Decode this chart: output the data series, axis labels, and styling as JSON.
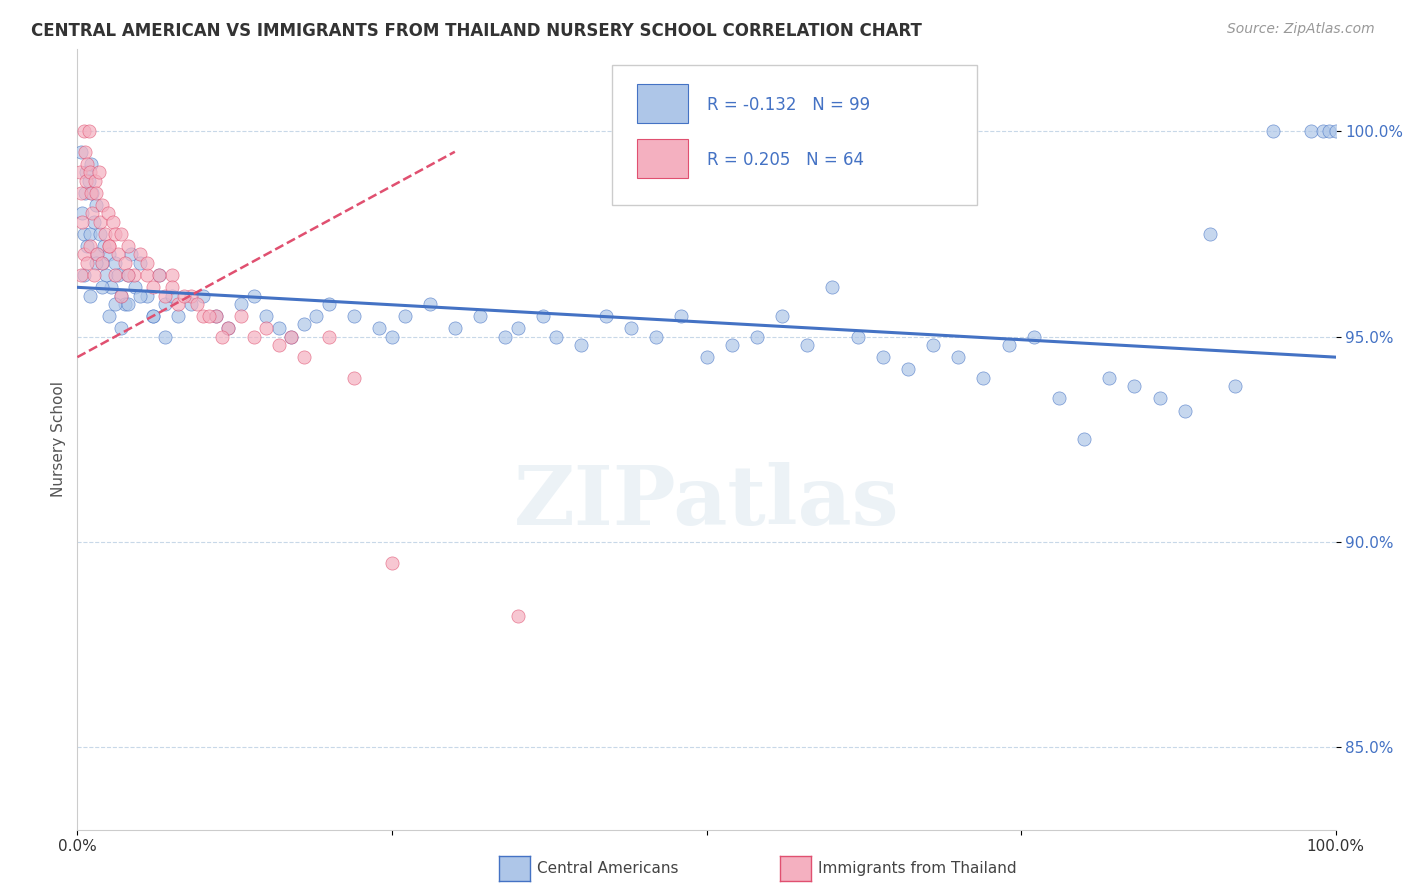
{
  "title": "CENTRAL AMERICAN VS IMMIGRANTS FROM THAILAND NURSERY SCHOOL CORRELATION CHART",
  "source_text": "Source: ZipAtlas.com",
  "ylabel": "Nursery School",
  "legend_label_1": "Central Americans",
  "legend_label_2": "Immigrants from Thailand",
  "r1": -0.132,
  "n1": 99,
  "r2": 0.205,
  "n2": 64,
  "color1": "#aec6e8",
  "color2": "#f4b0c0",
  "trendline1_color": "#4472c4",
  "trendline2_color": "#e05070",
  "watermark": "ZIPatlas",
  "xmin": 0.0,
  "xmax": 100.0,
  "ymin": 83.0,
  "ymax": 102.0,
  "yticks": [
    85.0,
    90.0,
    95.0,
    100.0
  ],
  "ytick_labels": [
    "85.0%",
    "90.0%",
    "95.0%",
    "100.0%"
  ],
  "blue_trendline_x0": 0.0,
  "blue_trendline_y0": 96.2,
  "blue_trendline_x1": 100.0,
  "blue_trendline_y1": 94.5,
  "pink_trendline_x0": 0.0,
  "pink_trendline_y0": 94.5,
  "pink_trendline_x1": 30.0,
  "pink_trendline_y1": 99.5,
  "scatter1_x": [
    0.3,
    0.4,
    0.5,
    0.6,
    0.7,
    0.8,
    0.9,
    1.0,
    1.1,
    1.2,
    1.3,
    1.5,
    1.6,
    1.8,
    2.0,
    2.1,
    2.3,
    2.5,
    2.7,
    3.0,
    3.2,
    3.5,
    3.8,
    4.0,
    4.3,
    4.6,
    5.0,
    5.5,
    6.0,
    6.5,
    7.0,
    7.5,
    8.0,
    9.0,
    10.0,
    11.0,
    12.0,
    13.0,
    14.0,
    15.0,
    16.0,
    17.0,
    18.0,
    19.0,
    20.0,
    22.0,
    24.0,
    25.0,
    26.0,
    28.0,
    30.0,
    32.0,
    34.0,
    35.0,
    37.0,
    38.0,
    40.0,
    42.0,
    44.0,
    46.0,
    48.0,
    50.0,
    52.0,
    54.0,
    56.0,
    58.0,
    60.0,
    62.0,
    64.0,
    66.0,
    68.0,
    70.0,
    72.0,
    74.0,
    76.0,
    78.0,
    80.0,
    82.0,
    84.0,
    86.0,
    88.0,
    90.0,
    92.0,
    95.0,
    98.0,
    99.0,
    99.5,
    100.0,
    0.5,
    1.0,
    1.5,
    2.0,
    2.5,
    3.0,
    3.5,
    4.0,
    5.0,
    6.0,
    7.0
  ],
  "scatter1_y": [
    99.5,
    98.0,
    97.5,
    98.5,
    99.0,
    97.2,
    98.8,
    97.5,
    99.2,
    98.5,
    97.8,
    98.2,
    97.0,
    97.5,
    96.8,
    97.2,
    96.5,
    97.0,
    96.2,
    96.8,
    96.5,
    96.0,
    95.8,
    96.5,
    97.0,
    96.2,
    96.8,
    96.0,
    95.5,
    96.5,
    95.8,
    96.0,
    95.5,
    95.8,
    96.0,
    95.5,
    95.2,
    95.8,
    96.0,
    95.5,
    95.2,
    95.0,
    95.3,
    95.5,
    95.8,
    95.5,
    95.2,
    95.0,
    95.5,
    95.8,
    95.2,
    95.5,
    95.0,
    95.2,
    95.5,
    95.0,
    94.8,
    95.5,
    95.2,
    95.0,
    95.5,
    94.5,
    94.8,
    95.0,
    95.5,
    94.8,
    96.2,
    95.0,
    94.5,
    94.2,
    94.8,
    94.5,
    94.0,
    94.8,
    95.0,
    93.5,
    92.5,
    94.0,
    93.8,
    93.5,
    93.2,
    97.5,
    93.8,
    100.0,
    100.0,
    100.0,
    100.0,
    100.0,
    96.5,
    96.0,
    96.8,
    96.2,
    95.5,
    95.8,
    95.2,
    95.8,
    96.0,
    95.5,
    95.0
  ],
  "scatter2_x": [
    0.2,
    0.3,
    0.4,
    0.5,
    0.6,
    0.7,
    0.8,
    0.9,
    1.0,
    1.1,
    1.2,
    1.4,
    1.5,
    1.7,
    1.8,
    2.0,
    2.2,
    2.4,
    2.5,
    2.8,
    3.0,
    3.2,
    3.5,
    3.8,
    4.0,
    4.5,
    5.0,
    5.5,
    6.0,
    7.0,
    7.5,
    8.0,
    9.0,
    10.0,
    11.0,
    12.0,
    13.0,
    14.0,
    15.0,
    16.0,
    17.0,
    18.0,
    20.0,
    22.0,
    5.5,
    6.5,
    7.5,
    8.5,
    9.5,
    10.5,
    11.5,
    0.3,
    0.5,
    0.8,
    1.0,
    1.3,
    1.6,
    2.0,
    2.5,
    3.0,
    3.5,
    4.0,
    25.0,
    35.0
  ],
  "scatter2_y": [
    99.0,
    98.5,
    97.8,
    100.0,
    99.5,
    98.8,
    99.2,
    100.0,
    99.0,
    98.5,
    98.0,
    98.8,
    98.5,
    99.0,
    97.8,
    98.2,
    97.5,
    98.0,
    97.2,
    97.8,
    97.5,
    97.0,
    97.5,
    96.8,
    97.2,
    96.5,
    97.0,
    96.5,
    96.2,
    96.0,
    96.5,
    95.8,
    96.0,
    95.5,
    95.5,
    95.2,
    95.5,
    95.0,
    95.2,
    94.8,
    95.0,
    94.5,
    95.0,
    94.0,
    96.8,
    96.5,
    96.2,
    96.0,
    95.8,
    95.5,
    95.0,
    96.5,
    97.0,
    96.8,
    97.2,
    96.5,
    97.0,
    96.8,
    97.2,
    96.5,
    96.0,
    96.5,
    89.5,
    88.2
  ]
}
